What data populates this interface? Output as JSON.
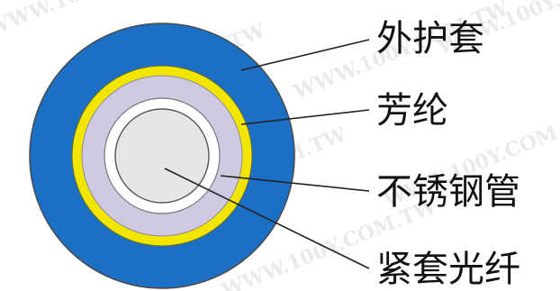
{
  "watermark": {
    "text": "WWW.100Y.COM.TW"
  },
  "colors": {
    "outer_jacket": "#1b6fc4",
    "aramid": "#f2e600",
    "stainless_steel_tube": "#cfc9e2",
    "white_ring": "#ffffff",
    "fiber_core": "#e6e6e6",
    "outline": "#555555"
  },
  "labels": [
    {
      "id": "outer-jacket",
      "text": "外护套"
    },
    {
      "id": "aramid",
      "text": "芳纶"
    },
    {
      "id": "stainless-steel-tube",
      "text": "不锈钢管"
    },
    {
      "id": "tight-buffered-fiber",
      "text": "紧套光纤"
    }
  ]
}
